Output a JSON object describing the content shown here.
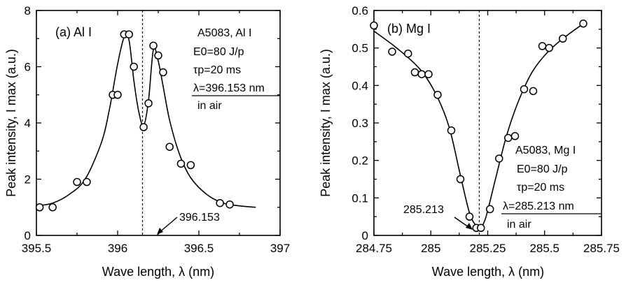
{
  "chart_data": [
    {
      "type": "scatter",
      "panel_label": "(a) Al I",
      "xlabel": "Wave length, λ (nm)",
      "ylabel": "Peak intensity, I max (a.u.)",
      "xlim": [
        395.5,
        397
      ],
      "ylim": [
        0,
        8
      ],
      "xticks": [
        395.5,
        396,
        396.5,
        397
      ],
      "xtick_labels": [
        "395.5",
        "396",
        "396.5",
        "397"
      ],
      "yticks": [
        0,
        2,
        4,
        6,
        8
      ],
      "ytick_labels": [
        "0",
        "2",
        "4",
        "6",
        "8"
      ],
      "reference_line": 396.153,
      "reference_label": "396.153",
      "info": [
        "A5083, Al I",
        "E0=80 J/p",
        "τp=20 ms",
        "λ=396.153 nm",
        "in air"
      ],
      "points": {
        "x": [
          395.52,
          395.6,
          395.75,
          395.81,
          395.97,
          396.0,
          396.04,
          396.07,
          396.1,
          396.16,
          396.19,
          396.22,
          396.25,
          396.28,
          396.32,
          396.39,
          396.45,
          396.63,
          396.69
        ],
        "y": [
          1.0,
          1.0,
          1.9,
          1.9,
          5.0,
          5.0,
          7.15,
          7.15,
          6.0,
          3.85,
          4.7,
          6.75,
          6.4,
          5.8,
          3.15,
          2.55,
          2.5,
          1.15,
          1.1
        ]
      },
      "fit": {
        "x": [
          395.5,
          395.6,
          395.7,
          395.8,
          395.9,
          395.95,
          396.0,
          396.04,
          396.07,
          396.1,
          396.13,
          396.16,
          396.19,
          396.22,
          396.25,
          396.28,
          396.32,
          396.38,
          396.45,
          396.55,
          396.65,
          396.75,
          396.85
        ],
        "y": [
          1.05,
          1.15,
          1.45,
          2.0,
          3.3,
          4.5,
          6.1,
          7.05,
          6.95,
          5.5,
          4.4,
          3.9,
          4.8,
          6.6,
          6.2,
          5.3,
          4.1,
          2.9,
          2.05,
          1.45,
          1.15,
          1.05,
          1.0
        ]
      }
    },
    {
      "type": "scatter",
      "panel_label": "(b) Mg I",
      "xlabel": "Wave length, λ (nm)",
      "ylabel": "Peak intensity, I max (a.u.)",
      "xlim": [
        284.75,
        285.75
      ],
      "ylim": [
        0,
        0.6
      ],
      "xticks": [
        284.75,
        285.0,
        285.25,
        285.5,
        285.75
      ],
      "xtick_labels": [
        "284.75",
        "285",
        "285.25",
        "285.5",
        "285.75"
      ],
      "yticks": [
        0,
        0.1,
        0.2,
        0.3,
        0.4,
        0.5,
        0.6
      ],
      "ytick_labels": [
        "0",
        "0.1",
        "0.2",
        "0.3",
        "0.4",
        "0.5",
        "0.6"
      ],
      "reference_line": 285.213,
      "reference_label": "285.213",
      "info": [
        "A5083, Mg I",
        "E0=80 J/p",
        "τp=20 ms",
        "λ=285.213 nm",
        "in air"
      ],
      "points": {
        "x": [
          284.75,
          284.83,
          284.9,
          284.93,
          284.96,
          284.99,
          285.03,
          285.09,
          285.13,
          285.17,
          285.2,
          285.22,
          285.26,
          285.3,
          285.34,
          285.37,
          285.41,
          285.45,
          285.49,
          285.52,
          285.58,
          285.67
        ],
        "y": [
          0.56,
          0.49,
          0.485,
          0.435,
          0.43,
          0.43,
          0.375,
          0.28,
          0.15,
          0.05,
          0.02,
          0.02,
          0.07,
          0.205,
          0.26,
          0.265,
          0.39,
          0.385,
          0.505,
          0.5,
          0.525,
          0.565
        ]
      },
      "fit": {
        "x": [
          284.75,
          284.85,
          284.95,
          285.02,
          285.08,
          285.13,
          285.17,
          285.2,
          285.215,
          285.24,
          285.28,
          285.33,
          285.38,
          285.44,
          285.5,
          285.57,
          285.67
        ],
        "y": [
          0.545,
          0.5,
          0.445,
          0.38,
          0.29,
          0.16,
          0.06,
          0.025,
          0.02,
          0.045,
          0.14,
          0.26,
          0.35,
          0.43,
          0.48,
          0.52,
          0.565
        ]
      }
    }
  ]
}
